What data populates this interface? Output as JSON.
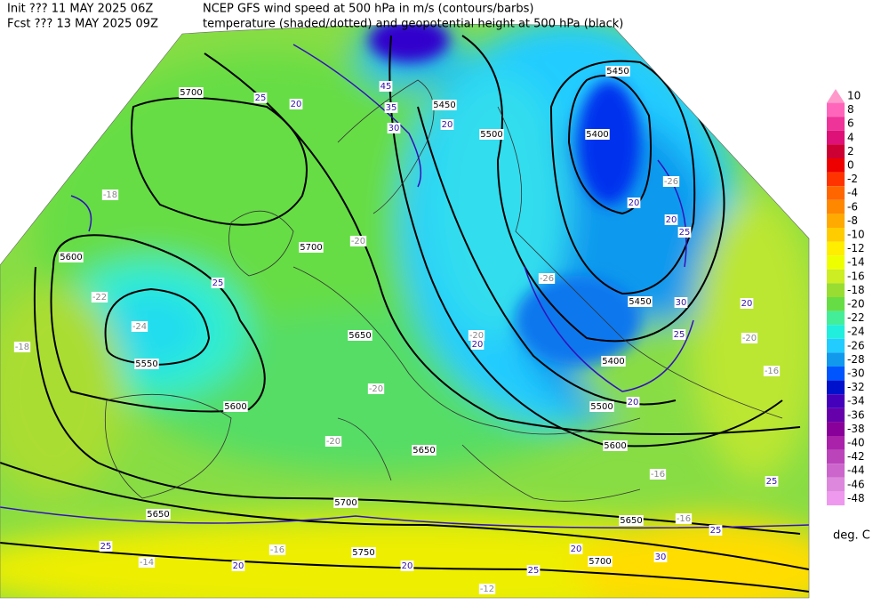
{
  "header": {
    "init": "Init  ??? 11 MAY 2025 06Z",
    "fcst": "Fcst ??? 13 MAY 2025 09Z",
    "line1": "NCEP GFS wind speed at 500 hPa in m/s (contours/barbs)",
    "line2": "temperature (shaded/dotted) and geopotential height at 500 hPa (black)"
  },
  "colorbar": {
    "labels": [
      10,
      8,
      6,
      4,
      2,
      0,
      -2,
      -4,
      -6,
      -8,
      -10,
      -12,
      -14,
      -16,
      -18,
      -20,
      -22,
      -24,
      -26,
      -28,
      -30,
      -32,
      -34,
      -36,
      -38,
      -40,
      -42,
      -44,
      -46,
      -48
    ],
    "colors": [
      "#ff99cc",
      "#ff66bb",
      "#ee3399",
      "#dd1177",
      "#cc0033",
      "#ee0000",
      "#ff3300",
      "#ff6600",
      "#ff8800",
      "#ffaa00",
      "#ffcc00",
      "#ffee00",
      "#eeff00",
      "#ccee22",
      "#99dd33",
      "#66dd44",
      "#44ee99",
      "#22eedd",
      "#22ccff",
      "#1199ee",
      "#0055ff",
      "#0011cc",
      "#4400bb",
      "#6600aa",
      "#880099",
      "#aa22aa",
      "#bb44bb",
      "#cc66cc",
      "#dd88dd",
      "#ee99ee"
    ],
    "unit": "deg. C"
  },
  "map": {
    "height_labels": [
      5450,
      5450,
      5500,
      5400,
      5700,
      5700,
      5600,
      5550,
      5650,
      5450,
      5400,
      5500,
      5600,
      5650,
      5600,
      5700,
      5650,
      5750,
      5700,
      5650
    ],
    "wind_labels": [
      45,
      35,
      30,
      25,
      20,
      25,
      20,
      20,
      25,
      30,
      25,
      20,
      20,
      20,
      25,
      20,
      30,
      25,
      25,
      20,
      20,
      25,
      20
    ],
    "temp_labels": [
      -22,
      -24,
      -20,
      -20,
      -20,
      -26,
      -26,
      -20,
      -16,
      -16,
      -18,
      -16,
      -12,
      -18,
      -20,
      -16,
      -14
    ]
  }
}
